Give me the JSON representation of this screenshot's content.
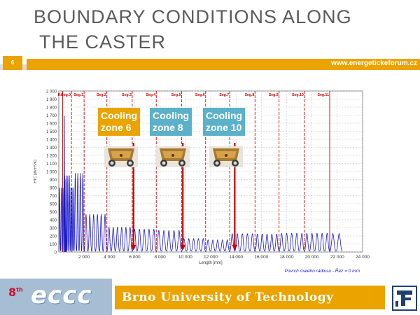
{
  "slide": {
    "title_line1": "BOUNDARY CONDITIONS ALONG",
    "title_line2": "THE CASTER",
    "number": "6",
    "url": "www.energetickeforum.cz",
    "footer_text": "Brno University of Technology",
    "logo_number": "8",
    "logo_sup": "th",
    "logo_text": "eccc"
  },
  "colors": {
    "accent": "#eba300",
    "title": "#5b5b5b",
    "zone_orange": "#eba300",
    "zone_blue": "#5bb1c9",
    "series": "#1a1acc",
    "marker": "#cc0000",
    "grid": "#bfbfbf"
  },
  "zones": [
    {
      "label_line1": "Cooling",
      "label_line2": "zone 6",
      "color": "orange",
      "arrow_x_mm": 5900
    },
    {
      "label_line1": "Cooling",
      "label_line2": "zone 8",
      "color": "blue",
      "arrow_x_mm": 9800
    },
    {
      "label_line1": "Cooling",
      "label_line2": "zone 10",
      "color": "blue",
      "arrow_x_mm": 13900
    }
  ],
  "chart_data": {
    "type": "line",
    "xlabel": "Length [mm]",
    "ylabel": "HTC [W/m^2K]",
    "xlim": [
      0,
      24000
    ],
    "ylim": [
      0,
      2000
    ],
    "x_ticks": [
      "2 000",
      "4 000",
      "6 000",
      "8 000",
      "10 000",
      "12 000",
      "14 000",
      "16 000",
      "18 000",
      "20 000",
      "22 000",
      "24 000"
    ],
    "y_ticks": [
      "0",
      "100",
      "200",
      "300",
      "400",
      "500",
      "600",
      "700",
      "800",
      "900",
      "1 000",
      "1 100",
      "1 200",
      "1 300",
      "1 400",
      "1 500",
      "1 600",
      "1 700",
      "1 800",
      "1 900",
      "2 000"
    ],
    "segments": [
      {
        "label": "Kr",
        "x": 300
      },
      {
        "label": "Seg.0",
        "x": 1000
      },
      {
        "label": "Seg.1",
        "x": 2000
      },
      {
        "label": "Seg.2",
        "x": 3800
      },
      {
        "label": "Seg.3",
        "x": 5800
      },
      {
        "label": "Seg.4",
        "x": 7700
      },
      {
        "label": "Seg.5",
        "x": 9700
      },
      {
        "label": "Seg.6",
        "x": 11600
      },
      {
        "label": "Seg.7",
        "x": 13500
      },
      {
        "label": "Seg.8",
        "x": 15500
      },
      {
        "label": "Seg.9",
        "x": 17400
      },
      {
        "label": "Seg.10",
        "x": 19400
      },
      {
        "label": "Seg.11",
        "x": 21400
      }
    ],
    "series_profile": [
      {
        "from": 0,
        "to": 400,
        "peak": 800,
        "period": 150
      },
      {
        "from": 400,
        "to": 900,
        "peak": 950,
        "period": 120
      },
      {
        "from": 900,
        "to": 1200,
        "peak": 800,
        "period": 110
      },
      {
        "from": 1200,
        "to": 2000,
        "peak": 980,
        "period": 180
      },
      {
        "from": 2000,
        "to": 3800,
        "peak": 470,
        "period": 300
      },
      {
        "from": 3800,
        "to": 5800,
        "peak": 310,
        "period": 350
      },
      {
        "from": 5800,
        "to": 7700,
        "peak": 285,
        "period": 380
      },
      {
        "from": 7700,
        "to": 9700,
        "peak": 270,
        "period": 390
      },
      {
        "from": 9700,
        "to": 11600,
        "peak": 165,
        "period": 390
      },
      {
        "from": 11600,
        "to": 13500,
        "peak": 150,
        "period": 400
      },
      {
        "from": 13500,
        "to": 15500,
        "peak": 230,
        "period": 410
      },
      {
        "from": 15500,
        "to": 17400,
        "peak": 225,
        "period": 420
      },
      {
        "from": 17400,
        "to": 19400,
        "peak": 235,
        "period": 420
      },
      {
        "from": 19400,
        "to": 21400,
        "peak": 235,
        "period": 420
      },
      {
        "from": 21400,
        "to": 22400,
        "peak": 230,
        "period": 420
      }
    ],
    "spikes": [
      {
        "x": 430,
        "y": 1690
      },
      {
        "x": 560,
        "y": 900
      }
    ],
    "bottom_note": "Povrch malého rádiusu - Řez =     0 mm"
  }
}
